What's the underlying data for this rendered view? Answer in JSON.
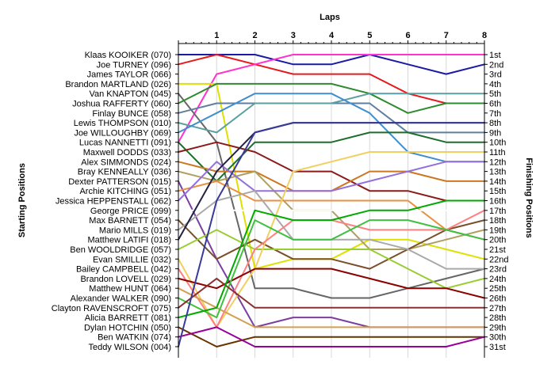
{
  "chart_data": {
    "type": "line",
    "title": "",
    "xlabel": "Laps",
    "ylabel_left": "Starting Positions",
    "ylabel_right": "Finishing Positions",
    "x": [
      0,
      1,
      2,
      3,
      4,
      5,
      6,
      7,
      8
    ],
    "x_tick_labels": [
      "1",
      "2",
      "3",
      "4",
      "5",
      "6",
      "7",
      "8"
    ],
    "ylim": [
      1,
      31
    ],
    "y_inverted": true,
    "grid": "vertical",
    "drivers": [
      "Klaas KOOIKER (070)",
      "Joe TURNEY (096)",
      "James TAYLOR (066)",
      "Brandon MARTLAND (026)",
      "Van KNAPTON (045)",
      "Joshua RAFFERTY (060)",
      "Finlay BUNCE (058)",
      "Lewis THOMPSON (010)",
      "Joe WILLOUGHBY (069)",
      "Lucas NANNETTI (091)",
      "Maxwell DODDS (033)",
      "Alex SIMMONDS (024)",
      "Bray KENNEALLY (036)",
      "Dexter PATTERSON (015)",
      "Archie KITCHING (051)",
      "Jessica HEPPENSTALL (062)",
      "George PRICE (099)",
      "Max BARNETT (054)",
      "Mario MILLS (019)",
      "Matthew LATIFI (018)",
      "Ben WOOLDRIDGE (057)",
      "Evan SMILLIE (032)",
      "Bailey CAMPBELL (042)",
      "Brandon LOVELL (029)",
      "Matthew HUNT (064)",
      "Alexander WALKER (090)",
      "Clayton RAVENSCROFT (075)",
      "Alicia BARRETT (081)",
      "Dylan HOTCHIN (050)",
      "Ben WATKIN (074)",
      "Teddy WILSON (004)"
    ],
    "finishing_labels": [
      "1st",
      "2nd",
      "3rd",
      "4th",
      "5th",
      "6th",
      "7th",
      "8th",
      "9th",
      "10th",
      "11th",
      "12th",
      "13th",
      "14th",
      "15th",
      "16th",
      "17th",
      "18th",
      "19th",
      "20th",
      "21st",
      "22nd",
      "23rd",
      "24th",
      "25th",
      "26th",
      "27th",
      "28th",
      "29th",
      "30th",
      "31st"
    ],
    "series": [
      {
        "color": "#1a1aa6",
        "positions": [
          1,
          1,
          1,
          2,
          2,
          1,
          2,
          3,
          2
        ]
      },
      {
        "color": "#e41a1c",
        "positions": [
          2,
          1,
          2,
          3,
          3,
          3,
          5,
          6,
          6
        ]
      },
      {
        "color": "#ff33cc",
        "positions": [
          10,
          3,
          2,
          1,
          1,
          1,
          1,
          1,
          1
        ]
      },
      {
        "color": "#e0e000",
        "positions": [
          4,
          4,
          23,
          22,
          22,
          20,
          20,
          21,
          22
        ]
      },
      {
        "color": "#666666",
        "positions": [
          5,
          10,
          25,
          25,
          26,
          26,
          25,
          24,
          23
        ]
      },
      {
        "color": "#2e8b2e",
        "positions": [
          6,
          4,
          4,
          4,
          4,
          5,
          7,
          6,
          6
        ]
      },
      {
        "color": "#5f7f9f",
        "positions": [
          7,
          6,
          6,
          6,
          6,
          6,
          9,
          9,
          9
        ]
      },
      {
        "color": "#5aa0a0",
        "positions": [
          8,
          9,
          6,
          6,
          6,
          5,
          5,
          5,
          5
        ]
      },
      {
        "color": "#3f8fd0",
        "positions": [
          9,
          7,
          5,
          5,
          5,
          7,
          11,
          12,
          12
        ]
      },
      {
        "color": "#1c6e2a",
        "positions": [
          10,
          14,
          10,
          10,
          10,
          9,
          9,
          10,
          10
        ]
      },
      {
        "color": "#8b1a1a",
        "positions": [
          11,
          10,
          11,
          13,
          13,
          15,
          15,
          16,
          16
        ]
      },
      {
        "color": "#cc7722",
        "positions": [
          12,
          13,
          13,
          15,
          15,
          13,
          13,
          14,
          14
        ]
      },
      {
        "color": "#b0a060",
        "positions": [
          13,
          14,
          13,
          17,
          17,
          21,
          21,
          20,
          19
        ]
      },
      {
        "color": "#7b3fa0",
        "positions": [
          14,
          22,
          29,
          28,
          28,
          29,
          29,
          29,
          29
        ]
      },
      {
        "color": "#e89040",
        "positions": [
          15,
          14,
          16,
          16,
          16,
          16,
          16,
          19,
          20
        ]
      },
      {
        "color": "#9370db",
        "positions": [
          16,
          12,
          15,
          15,
          15,
          14,
          13,
          12,
          12
        ]
      },
      {
        "color": "#ffffff",
        "positions": [
          17,
          17,
          17,
          17,
          17,
          17,
          17,
          17,
          17
        ]
      },
      {
        "color": "#7a4f2a",
        "positions": [
          18,
          22,
          20,
          22,
          22,
          23,
          21,
          19,
          18
        ]
      },
      {
        "color": "#a9a9a9",
        "positions": [
          19,
          16,
          15,
          20,
          20,
          20,
          21,
          23,
          23
        ]
      },
      {
        "color": "#222244",
        "positions": [
          20,
          13,
          9,
          8,
          8,
          8,
          8,
          8,
          8
        ]
      },
      {
        "color": "#9acd32",
        "positions": [
          21,
          19,
          21,
          21,
          21,
          21,
          23,
          25,
          24
        ]
      },
      {
        "color": "#f0d060",
        "positions": [
          22,
          29,
          23,
          13,
          12,
          11,
          11,
          11,
          11
        ]
      },
      {
        "color": "#ff8080",
        "positions": [
          23,
          29,
          21,
          18,
          18,
          19,
          19,
          19,
          17
        ]
      },
      {
        "color": "#8b0000",
        "positions": [
          24,
          25,
          23,
          23,
          23,
          24,
          25,
          25,
          26
        ]
      },
      {
        "color": "#d4a050",
        "positions": [
          25,
          27,
          29,
          29,
          29,
          29,
          29,
          29,
          29
        ]
      },
      {
        "color": "#40c040",
        "positions": [
          26,
          28,
          18,
          20,
          20,
          18,
          18,
          19,
          20
        ]
      },
      {
        "color": "#8b3030",
        "positions": [
          27,
          24,
          27,
          27,
          27,
          27,
          27,
          27,
          27
        ]
      },
      {
        "color": "#00aa00",
        "positions": [
          28,
          27,
          17,
          18,
          18,
          17,
          17,
          16,
          16
        ]
      },
      {
        "color": "#663300",
        "positions": [
          29,
          31,
          30,
          30,
          30,
          30,
          30,
          30,
          30
        ]
      },
      {
        "color": "#990099",
        "positions": [
          30,
          29,
          31,
          31,
          31,
          31,
          31,
          31,
          30
        ]
      },
      {
        "color": "#3a3a9a",
        "positions": [
          31,
          16,
          9,
          8,
          8,
          8,
          8,
          8,
          8
        ]
      }
    ]
  }
}
